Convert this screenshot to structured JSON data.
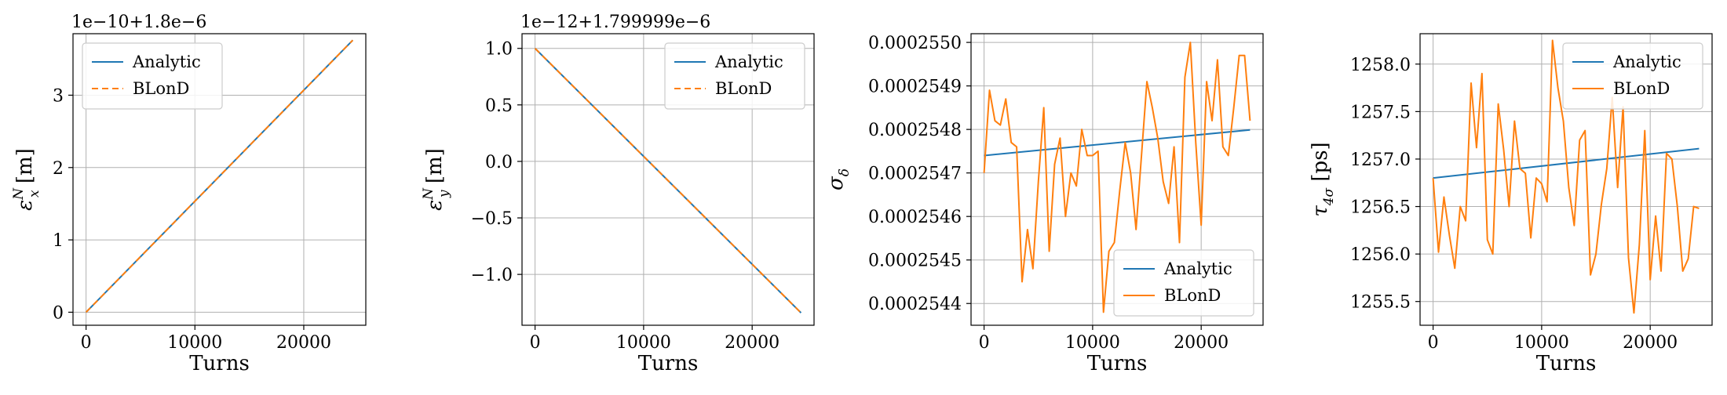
{
  "chart_data": [
    {
      "type": "line",
      "title": "",
      "xlabel": "Turns",
      "ylabel_base": "ε",
      "ylabel_sup": "N",
      "ylabel_sub": "x",
      "ylabel_unit": " [m]",
      "offset_text": "1e−10+1.8e−6",
      "xlim": [
        -1200,
        25700
      ],
      "ylim": [
        -0.18,
        3.85
      ],
      "x_ticks": [
        0,
        10000,
        20000
      ],
      "y_ticks": [
        0,
        1,
        2,
        3
      ],
      "y_tick_labels": [
        "0",
        "1",
        "2",
        "3"
      ],
      "grid": true,
      "legend_position": "top-left",
      "series": [
        {
          "name": "Analytic",
          "color": "#1f77b4",
          "dash": "",
          "x": [
            0,
            24500
          ],
          "y": [
            0,
            3.76
          ]
        },
        {
          "name": "BLonD",
          "color": "#ff7f0e",
          "dash": "8,5",
          "x": [
            0,
            24500
          ],
          "y": [
            0,
            3.76
          ]
        }
      ]
    },
    {
      "type": "line",
      "title": "",
      "xlabel": "Turns",
      "ylabel_base": "ε",
      "ylabel_sup": "N",
      "ylabel_sub": "y",
      "ylabel_unit": " [m]",
      "offset_text": "1e−12+1.799999e−6",
      "xlim": [
        -1200,
        25700
      ],
      "ylim": [
        -1.45,
        1.13
      ],
      "x_ticks": [
        0,
        10000,
        20000
      ],
      "y_ticks": [
        1.0,
        0.5,
        0.0,
        -0.5,
        -1.0
      ],
      "y_tick_labels": [
        "1.0",
        "0.5",
        "0.0",
        "−0.5",
        "−1.0"
      ],
      "grid": true,
      "legend_position": "top-right",
      "series": [
        {
          "name": "Analytic",
          "color": "#1f77b4",
          "dash": "",
          "x": [
            0,
            24500
          ],
          "y": [
            1.0,
            -1.34
          ]
        },
        {
          "name": "BLonD",
          "color": "#ff7f0e",
          "dash": "8,5",
          "x": [
            0,
            24500
          ],
          "y": [
            1.0,
            -1.34
          ]
        }
      ]
    },
    {
      "type": "line",
      "title": "",
      "xlabel": "Turns",
      "ylabel_base": "σ",
      "ylabel_sup": "",
      "ylabel_sub": "δ",
      "ylabel_unit": "",
      "offset_text": "",
      "xlim": [
        -1200,
        25700
      ],
      "ylim": [
        0.00025435,
        0.00025502
      ],
      "x_ticks": [
        0,
        10000,
        20000
      ],
      "y_ticks": [
        0.000255,
        0.0002549,
        0.0002548,
        0.0002547,
        0.0002546,
        0.0002545,
        0.0002544
      ],
      "y_tick_labels": [
        "0.0002550",
        "0.0002549",
        "0.0002548",
        "0.0002547",
        "0.0002546",
        "0.0002545",
        "0.0002544"
      ],
      "grid": true,
      "legend_position": "bottom-right",
      "series": [
        {
          "name": "Analytic",
          "color": "#1f77b4",
          "dash": "",
          "x": [
            0,
            24500
          ],
          "y": [
            0.00025474,
            0.000254799
          ]
        },
        {
          "name": "BLonD",
          "color": "#ff7f0e",
          "dash": "",
          "x": [
            0,
            500,
            1000,
            1500,
            2000,
            2500,
            3000,
            3500,
            4000,
            4500,
            5000,
            5500,
            6000,
            6500,
            7000,
            7500,
            8000,
            8500,
            9000,
            9500,
            10000,
            10500,
            11000,
            11500,
            12000,
            12500,
            13000,
            13500,
            14000,
            14500,
            15000,
            15500,
            16000,
            16500,
            17000,
            17500,
            18000,
            18500,
            19000,
            19500,
            20000,
            20500,
            21000,
            21500,
            22000,
            22500,
            23000,
            23500,
            24000,
            24500
          ],
          "y": [
            0.0002547,
            0.00025489,
            0.00025482,
            0.00025481,
            0.00025487,
            0.00025477,
            0.00025476,
            0.00025445,
            0.00025457,
            0.00025448,
            0.00025468,
            0.00025485,
            0.00025452,
            0.00025472,
            0.00025478,
            0.0002546,
            0.0002547,
            0.00025467,
            0.0002548,
            0.00025474,
            0.00025474,
            0.00025475,
            0.00025438,
            0.00025452,
            0.00025454,
            0.00025466,
            0.00025477,
            0.0002547,
            0.00025457,
            0.00025474,
            0.00025491,
            0.00025485,
            0.00025478,
            0.00025468,
            0.00025463,
            0.00025476,
            0.00025454,
            0.00025492,
            0.000255,
            0.00025477,
            0.00025458,
            0.00025491,
            0.00025482,
            0.00025496,
            0.00025476,
            0.00025474,
            0.00025485,
            0.00025497,
            0.00025497,
            0.00025482
          ]
        }
      ]
    },
    {
      "type": "line",
      "title": "",
      "xlabel": "Turns",
      "ylabel_base": "τ",
      "ylabel_sup": "",
      "ylabel_sub": "4σ",
      "ylabel_unit": " [ps]",
      "offset_text": "",
      "xlim": [
        -1200,
        25700
      ],
      "ylim": [
        1255.25,
        1258.32
      ],
      "x_ticks": [
        0,
        10000,
        20000
      ],
      "y_ticks": [
        1258.0,
        1257.5,
        1257.0,
        1256.5,
        1256.0,
        1255.5
      ],
      "y_tick_labels": [
        "1258.0",
        "1257.5",
        "1257.0",
        "1256.5",
        "1256.0",
        "1255.5"
      ],
      "grid": true,
      "legend_position": "top-right",
      "series": [
        {
          "name": "Analytic",
          "color": "#1f77b4",
          "dash": "",
          "x": [
            0,
            24500
          ],
          "y": [
            1256.8,
            1257.11
          ]
        },
        {
          "name": "BLonD",
          "color": "#ff7f0e",
          "dash": "",
          "x": [
            0,
            500,
            1000,
            1500,
            2000,
            2500,
            3000,
            3500,
            4000,
            4500,
            5000,
            5500,
            6000,
            6500,
            7000,
            7500,
            8000,
            8500,
            9000,
            9500,
            10000,
            10500,
            11000,
            11500,
            12000,
            12500,
            13000,
            13500,
            14000,
            14500,
            15000,
            15500,
            16000,
            16500,
            17000,
            17500,
            18000,
            18500,
            19000,
            19500,
            20000,
            20500,
            21000,
            21500,
            22000,
            22500,
            23000,
            23500,
            24000,
            24500
          ],
          "y": [
            1256.8,
            1256.02,
            1256.6,
            1256.2,
            1255.85,
            1256.5,
            1256.35,
            1257.8,
            1257.12,
            1257.9,
            1256.15,
            1256.0,
            1257.58,
            1257.1,
            1256.5,
            1257.4,
            1256.9,
            1256.85,
            1256.17,
            1256.8,
            1256.74,
            1256.55,
            1258.25,
            1257.75,
            1257.4,
            1256.7,
            1256.3,
            1257.2,
            1257.3,
            1255.78,
            1256.0,
            1256.52,
            1256.9,
            1257.65,
            1256.7,
            1257.55,
            1255.96,
            1255.38,
            1256.1,
            1257.3,
            1255.73,
            1256.4,
            1255.82,
            1257.06,
            1257.0,
            1256.5,
            1255.82,
            1255.95,
            1256.5,
            1256.48
          ]
        }
      ]
    }
  ]
}
